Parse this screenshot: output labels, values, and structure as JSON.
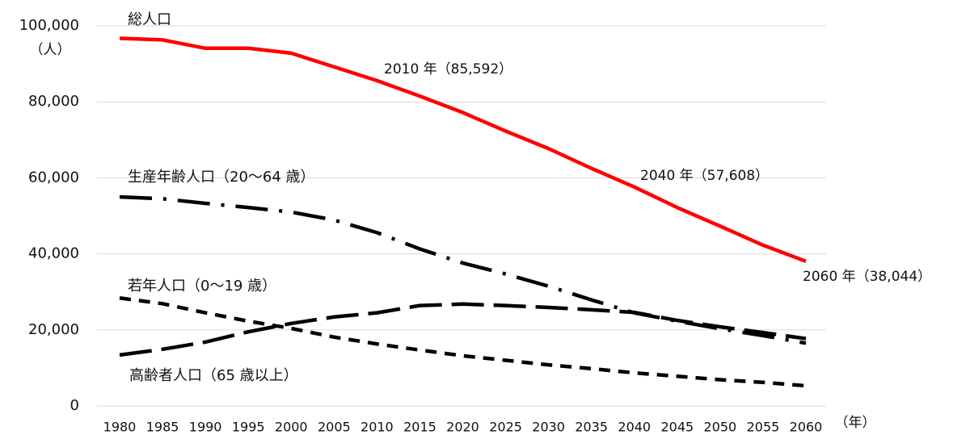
{
  "chart_data": {
    "type": "line",
    "y_unit": "（人）",
    "x_unit": "（年）",
    "categories": [
      "1980",
      "1985",
      "1990",
      "1995",
      "2000",
      "2005",
      "2010",
      "2015",
      "2020",
      "2025",
      "2030",
      "2035",
      "2040",
      "2045",
      "2050",
      "2055",
      "2060"
    ],
    "series": [
      {
        "name": "総人口",
        "color": "#ff0000",
        "dash": "solid",
        "values": [
          96700,
          96300,
          94100,
          94100,
          92800,
          89200,
          85592,
          81500,
          77200,
          72300,
          67700,
          62500,
          57608,
          52200,
          47300,
          42300,
          38044
        ]
      },
      {
        "name": "生産年齢人口（20～64 歳）",
        "color": "#000000",
        "dash": "dash-dot",
        "values": [
          55000,
          54500,
          53300,
          52200,
          51000,
          48900,
          45600,
          41300,
          37600,
          34700,
          31500,
          27900,
          24500,
          22300,
          20300,
          18500,
          16500
        ]
      },
      {
        "name": "若年人口（0～19 歳）",
        "color": "#000000",
        "dash": "short-dash",
        "values": [
          28400,
          26900,
          24500,
          22300,
          20400,
          18100,
          16300,
          14700,
          13200,
          12000,
          10800,
          9800,
          8700,
          7800,
          6900,
          6200,
          5300
        ]
      },
      {
        "name": "高齢者人口（65 歳以上）",
        "color": "#000000",
        "dash": "long-dash",
        "values": [
          13400,
          14900,
          16800,
          19500,
          21700,
          23400,
          24500,
          26400,
          26800,
          26400,
          25900,
          25300,
          24600,
          22500,
          20800,
          19300,
          17700
        ]
      }
    ],
    "annotations": [
      "2010 年（85,592）",
      "2040 年（57,608）",
      "2060 年（38,044）"
    ],
    "ylim": [
      0,
      100000
    ],
    "yticks": [
      0,
      {
        "value": 20000,
        "label": "20,000"
      },
      {
        "value": 40000,
        "label": "40,000"
      },
      {
        "value": 60000,
        "label": "60,000"
      },
      {
        "value": 80000,
        "label": "80,000"
      },
      {
        "value": 100000,
        "label": "100,000"
      }
    ],
    "grid": true
  }
}
